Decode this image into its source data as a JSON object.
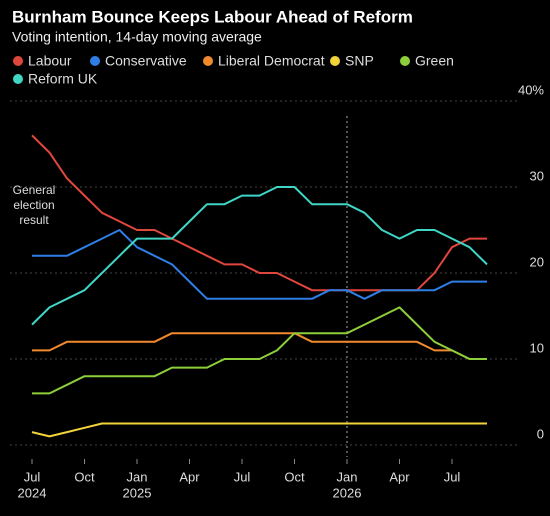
{
  "chart_data": {
    "type": "line",
    "title": "Burnham Bounce Keeps Labour Ahead of Reform",
    "subtitle": "Voting intention, 14-day moving average",
    "annotation": [
      "General",
      "election",
      "result"
    ],
    "x": [
      "2024-07",
      "2024-08",
      "2024-09",
      "2024-10",
      "2024-11",
      "2024-12",
      "2025-01",
      "2025-02",
      "2025-03",
      "2025-04",
      "2025-05",
      "2025-06",
      "2025-07",
      "2025-08",
      "2025-09",
      "2025-10",
      "2025-11",
      "2025-12",
      "2026-01",
      "2026-02",
      "2026-03",
      "2026-04",
      "2026-05",
      "2026-06",
      "2026-07",
      "2026-08",
      "2026-09"
    ],
    "series": [
      {
        "name": "Labour",
        "color": "#e0473c",
        "values": [
          36,
          34,
          31,
          29,
          27,
          26,
          25,
          25,
          24,
          23,
          22,
          21,
          21,
          20,
          20,
          19,
          18,
          18,
          18,
          18,
          18,
          18,
          18,
          20,
          23,
          24,
          24
        ]
      },
      {
        "name": "Conservative",
        "color": "#2f7ee6",
        "values": [
          22,
          22,
          22,
          23,
          24,
          25,
          23,
          22,
          21,
          19,
          17,
          17,
          17,
          17,
          17,
          17,
          17,
          18,
          18,
          17,
          18,
          18,
          18,
          18,
          19,
          19,
          19
        ]
      },
      {
        "name": "Liberal Democrat",
        "color": "#f08a2c",
        "values": [
          11,
          11,
          12,
          12,
          12,
          12,
          12,
          12,
          13,
          13,
          13,
          13,
          13,
          13,
          13,
          13,
          12,
          12,
          12,
          12,
          12,
          12,
          12,
          11,
          11,
          10,
          10
        ]
      },
      {
        "name": "SNP",
        "color": "#f2d33a",
        "values": [
          1.5,
          1,
          1.5,
          2,
          2.5,
          2.5,
          2.5,
          2.5,
          2.5,
          2.5,
          2.5,
          2.5,
          2.5,
          2.5,
          2.5,
          2.5,
          2.5,
          2.5,
          2.5,
          2.5,
          2.5,
          2.5,
          2.5,
          2.5,
          2.5,
          2.5,
          2.5
        ]
      },
      {
        "name": "Green",
        "color": "#8ccf3a",
        "values": [
          6,
          6,
          7,
          8,
          8,
          8,
          8,
          8,
          9,
          9,
          9,
          10,
          10,
          10,
          11,
          13,
          13,
          13,
          13,
          14,
          15,
          16,
          14,
          12,
          11,
          10,
          10
        ]
      },
      {
        "name": "Reform UK",
        "color": "#3fd6c6",
        "values": [
          14,
          16,
          17,
          18,
          20,
          22,
          24,
          24,
          24,
          26,
          28,
          28,
          29,
          29,
          30,
          30,
          28,
          28,
          28,
          27,
          25,
          24,
          25,
          25,
          24,
          23,
          21
        ]
      }
    ],
    "xticks": [
      {
        "value": "2024-07",
        "label": "Jul",
        "year": "2024"
      },
      {
        "value": "2024-10",
        "label": "Oct"
      },
      {
        "value": "2025-01",
        "label": "Jan",
        "year": "2025"
      },
      {
        "value": "2025-04",
        "label": "Apr"
      },
      {
        "value": "2025-07",
        "label": "Jul"
      },
      {
        "value": "2025-10",
        "label": "Oct"
      },
      {
        "value": "2026-01",
        "label": "Jan",
        "year": "2026"
      },
      {
        "value": "2026-04",
        "label": "Apr"
      },
      {
        "value": "2026-07",
        "label": "Jul"
      }
    ],
    "vline": "2026-01",
    "ylim": [
      0,
      40
    ],
    "yticks": [
      0,
      10,
      20,
      30,
      {
        "value": 40,
        "label": "40%"
      }
    ],
    "grid": true
  }
}
